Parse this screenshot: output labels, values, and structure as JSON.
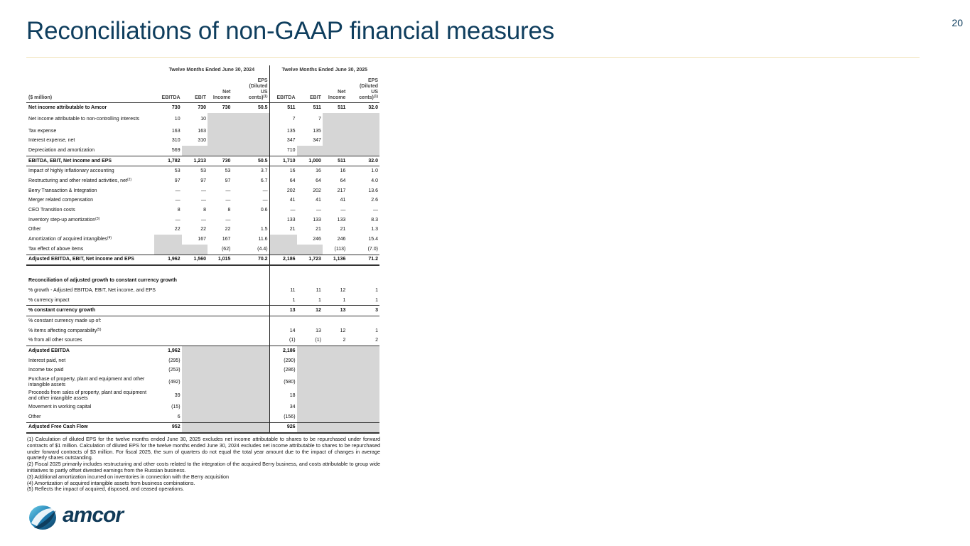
{
  "header": {
    "title": "Reconciliations of non-GAAP financial measures",
    "page_number": "20"
  },
  "table": {
    "period_a": "Twelve Months Ended June 30, 2024",
    "period_b": "Twelve Months Ended June 30, 2025",
    "unit_label": "($ million)",
    "col_ebitda": "EBITDA",
    "col_ebit": "EBIT",
    "col_net_1": "Net",
    "col_net_2": "Income",
    "col_eps_1": "EPS",
    "col_eps_2": "(Diluted",
    "col_eps_3": "US",
    "col_eps_4": "cents)",
    "col_eps_sup": "(1)",
    "rows": [
      {
        "label": "Net income attributable to Amcor",
        "v": [
          "730",
          "730",
          "730",
          "50.5",
          "511",
          "511",
          "511",
          "32.0"
        ]
      },
      {
        "label": "Net income attributable to non-controlling interests",
        "v": [
          "10",
          "10",
          "",
          "",
          "7",
          "7",
          "",
          ""
        ]
      },
      {
        "label": "Tax expense",
        "v": [
          "163",
          "163",
          "",
          "",
          "135",
          "135",
          "",
          ""
        ]
      },
      {
        "label": "Interest expense, net",
        "v": [
          "310",
          "310",
          "",
          "",
          "347",
          "347",
          "",
          ""
        ]
      },
      {
        "label": "Depreciation and amortization",
        "v": [
          "569",
          "",
          "",
          "",
          "710",
          "",
          "",
          ""
        ]
      },
      {
        "label": "EBITDA, EBIT, Net income and EPS",
        "v": [
          "1,782",
          "1,213",
          "730",
          "50.5",
          "1,710",
          "1,000",
          "511",
          "32.0"
        ]
      },
      {
        "label": "Impact of highly inflationary accounting",
        "v": [
          "53",
          "53",
          "53",
          "3.7",
          "16",
          "16",
          "16",
          "1.0"
        ]
      },
      {
        "label": "Restructuring and other related activities, net",
        "sup": "(2)",
        "v": [
          "97",
          "97",
          "97",
          "6.7",
          "64",
          "64",
          "64",
          "4.0"
        ]
      },
      {
        "label": "Berry Transaction & Integration",
        "v": [
          "—",
          "—",
          "—",
          "—",
          "202",
          "202",
          "217",
          "13.6"
        ]
      },
      {
        "label": "Merger related compensation",
        "v": [
          "—",
          "—",
          "—",
          "—",
          "41",
          "41",
          "41",
          "2.6"
        ]
      },
      {
        "label": "CEO Transition costs",
        "v": [
          "8",
          "8",
          "8",
          "0.6",
          "—",
          "—",
          "—",
          "—"
        ]
      },
      {
        "label": "Inventory step-up amortization",
        "sup": "(3)",
        "v": [
          "—",
          "—",
          "—",
          "",
          "133",
          "133",
          "133",
          "8.3"
        ]
      },
      {
        "label": "Other",
        "v": [
          "22",
          "22",
          "22",
          "1.5",
          "21",
          "21",
          "21",
          "1.3"
        ]
      },
      {
        "label": "Amortization of acquired intangibles",
        "sup": "(4)",
        "v": [
          "",
          "167",
          "167",
          "11.6",
          "",
          "246",
          "246",
          "15.4"
        ]
      },
      {
        "label": "Tax effect of above items",
        "v": [
          "",
          "",
          "(62)",
          "(4.4)",
          "",
          "",
          "(113)",
          "(7.0)"
        ]
      },
      {
        "label": "Adjusted EBITDA, EBIT, Net income and EPS",
        "v": [
          "1,962",
          "1,560",
          "1,015",
          "70.2",
          "2,186",
          "1,723",
          "1,136",
          "71.2"
        ]
      }
    ],
    "ccy_rows": [
      {
        "label": "Reconciliation of adjusted growth to constant currency growth",
        "v": [
          "",
          "",
          "",
          ""
        ]
      },
      {
        "label": "% growth - Adjusted EBITDA, EBIT, Net income, and EPS",
        "v": [
          "11",
          "11",
          "12",
          "1"
        ]
      },
      {
        "label": "% currency impact",
        "v": [
          "1",
          "1",
          "1",
          "1"
        ]
      },
      {
        "label": "% constant currency growth",
        "v": [
          "13",
          "12",
          "13",
          "3"
        ]
      },
      {
        "label": "% constant currency made up of:",
        "v": [
          "",
          "",
          "",
          ""
        ]
      },
      {
        "label": "% items affecting comparability",
        "sup": "(5)",
        "v": [
          "14",
          "13",
          "12",
          "1"
        ]
      },
      {
        "label": "% from all other sources",
        "v": [
          "(1)",
          "(1)",
          "2",
          "2"
        ]
      }
    ],
    "fcf_rows": [
      {
        "label": "Adjusted EBITDA",
        "a": "1,962",
        "b": "2,186"
      },
      {
        "label": "Interest paid, net",
        "a": "(295)",
        "b": "(290)"
      },
      {
        "label": "Income tax paid",
        "a": "(253)",
        "b": "(286)"
      },
      {
        "label": "Purchase of property, plant and equipment and other intangible assets",
        "a": "(492)",
        "b": "(580)"
      },
      {
        "label": "Proceeds from sales of property, plant and equipment and other intangible assets",
        "a": "39",
        "b": "18"
      },
      {
        "label": "Movement in working capital",
        "a": "(15)",
        "b": "34"
      },
      {
        "label": "Other",
        "a": "6",
        "b": "(156)"
      },
      {
        "label": "Adjusted Free Cash Flow",
        "a": "952",
        "b": "926"
      }
    ]
  },
  "footnotes": [
    "(1) Calculation of diluted EPS for the twelve months ended June 30, 2025 excludes net income attributable to shares to be repurchased under forward contracts of $1 million. Calculation of diluted EPS for the twelve months ended June 30, 2024 excludes net income attributable to shares to be repurchased under forward contracts of $3 million.  For fiscal 2025, the sum of quarters do not equal the total year amount due to the impact of changes in average quarterly shares outstanding.",
    "(2) Fiscal 2025 primarily includes restructuring and other costs related to the integration of the acquired Berry business, and costs attributable to group wide initiatives to partly offset divested earnings from the Russian business.",
    "(3) Additional amortization incurred on inventories in connection with the Berry acquisition",
    "(4) Amortization of acquired intangible assets from business combinations.",
    "(5) Reflects the impact of acquired, disposed, and ceased operations."
  ],
  "logo": {
    "text": "amcor"
  },
  "colors": {
    "title": "#0f3e5e",
    "shade": "#d6d6d6",
    "rule": "#f0e2b8"
  }
}
